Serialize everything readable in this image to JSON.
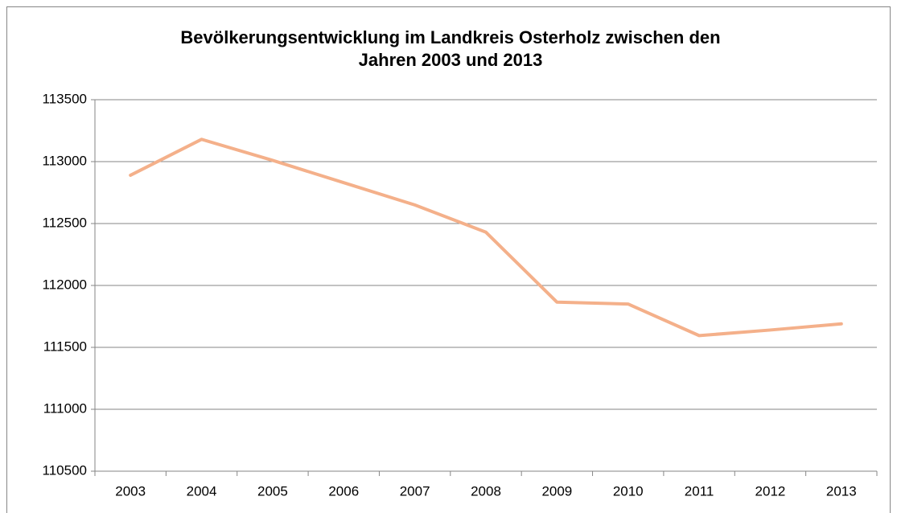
{
  "chart_data": {
    "type": "line",
    "title": [
      "Bevölkerungsentwicklung im Landkreis Osterholz zwischen den",
      "Jahren 2003 und 2013"
    ],
    "categories": [
      "2003",
      "2004",
      "2005",
      "2006",
      "2007",
      "2008",
      "2009",
      "2010",
      "2011",
      "2012",
      "2013"
    ],
    "values": [
      112890,
      113180,
      113010,
      112830,
      112650,
      112430,
      111865,
      111850,
      111595,
      111640,
      111690
    ],
    "color": "#f4b08a",
    "ylim": [
      110500,
      113500
    ],
    "yticks": [
      110500,
      111000,
      111500,
      112000,
      112500,
      113000,
      113500
    ],
    "grid": true
  }
}
